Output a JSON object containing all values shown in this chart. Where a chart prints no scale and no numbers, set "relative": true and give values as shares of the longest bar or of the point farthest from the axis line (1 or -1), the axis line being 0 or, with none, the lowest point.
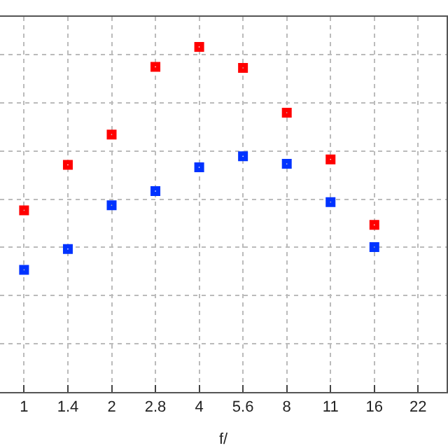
{
  "chart_data": {
    "type": "scatter",
    "xlabel": "f/",
    "relative": true,
    "marker": "square",
    "grid": true,
    "categories": [
      "1",
      "1.4",
      "2",
      "2.8",
      "4",
      "5.6",
      "8",
      "11",
      "16",
      "22"
    ],
    "series": [
      {
        "color": "#ff0000",
        "values": [
          0.526,
          0.658,
          0.746,
          0.942,
          1.0,
          0.939,
          0.809,
          0.674,
          0.484,
          null
        ]
      },
      {
        "color": "#0033ff",
        "values": [
          0.354,
          0.414,
          0.541,
          0.582,
          0.651,
          0.683,
          0.661,
          0.55,
          0.42,
          null
        ]
      }
    ]
  }
}
